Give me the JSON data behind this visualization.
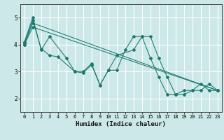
{
  "title": "",
  "xlabel": "Humidex (Indice chaleur)",
  "background_color": "#cce8e8",
  "grid_color": "#ffffff",
  "line_color": "#1a7a6e",
  "xlim": [
    -0.5,
    23.5
  ],
  "ylim": [
    1.5,
    5.5
  ],
  "xticks": [
    0,
    1,
    2,
    3,
    4,
    5,
    6,
    7,
    8,
    9,
    10,
    11,
    12,
    13,
    14,
    15,
    16,
    17,
    18,
    19,
    20,
    21,
    22,
    23
  ],
  "yticks": [
    2,
    3,
    4,
    5
  ],
  "series": [
    {
      "x": [
        0,
        1,
        2,
        3,
        5,
        6,
        7,
        8,
        9,
        10,
        11,
        13,
        14,
        15,
        16,
        17,
        18,
        19,
        20,
        21,
        22,
        23
      ],
      "y": [
        4.1,
        5.0,
        3.8,
        4.3,
        3.5,
        3.0,
        2.95,
        3.25,
        2.5,
        3.05,
        3.6,
        3.8,
        4.3,
        4.3,
        3.5,
        2.8,
        2.15,
        2.15,
        2.3,
        2.3,
        2.55,
        2.3
      ]
    },
    {
      "x": [
        0,
        1,
        2,
        3,
        4,
        6,
        7,
        8,
        9,
        10,
        11,
        12,
        13,
        14,
        15,
        16,
        17,
        18,
        19,
        20,
        21,
        22,
        23
      ],
      "y": [
        4.05,
        4.9,
        3.85,
        3.6,
        3.55,
        3.0,
        3.0,
        3.3,
        2.5,
        3.05,
        3.05,
        3.8,
        4.3,
        4.3,
        3.5,
        2.8,
        2.15,
        2.15,
        2.3,
        2.3,
        2.55,
        2.3,
        2.3
      ]
    },
    {
      "x": [
        0,
        1,
        23
      ],
      "y": [
        4.0,
        4.8,
        2.3
      ]
    },
    {
      "x": [
        0,
        1,
        23
      ],
      "y": [
        4.0,
        4.65,
        2.3
      ]
    }
  ]
}
